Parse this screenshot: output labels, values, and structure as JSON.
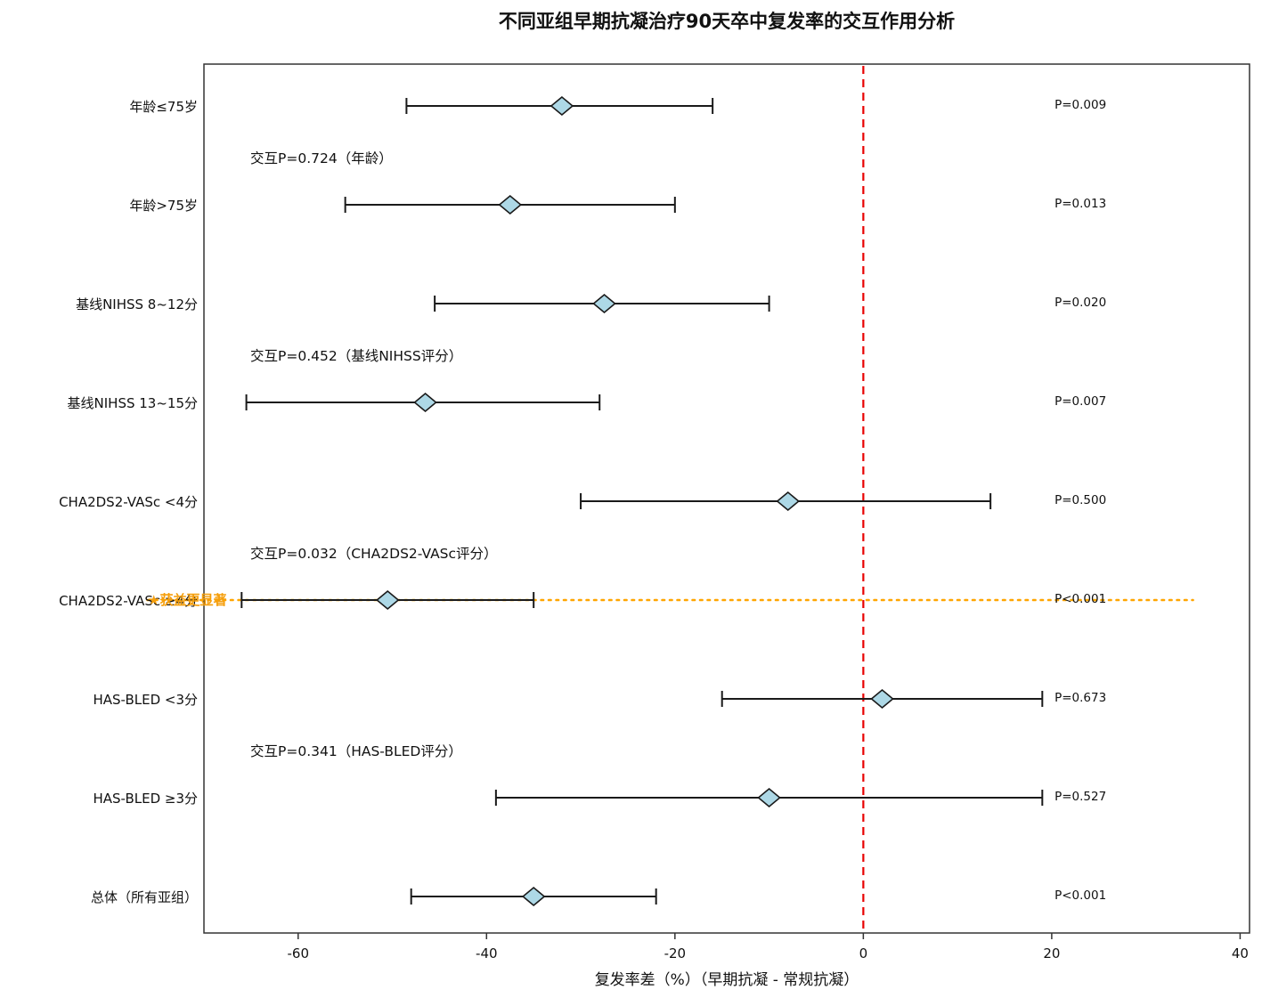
{
  "title": "不同亚组早期抗凝治疗90天卒中复发率的交互作用分析",
  "chart_data": {
    "type": "forest",
    "title": "不同亚组早期抗凝治疗90天卒中复发率的交互作用分析",
    "xlabel": "复发率差（%）（早期抗凝 - 常规抗凝）",
    "xlim": [
      -70,
      41
    ],
    "xticks": [
      "-60",
      "-40",
      "-20",
      "0",
      "20",
      "40"
    ],
    "xtick_values": [
      -60,
      -40,
      -20,
      0,
      20,
      40
    ],
    "reference_line": {
      "x": 0,
      "color": "#e80000",
      "style": "dashed"
    },
    "marker": {
      "shape": "diamond",
      "fill": "#add8e6",
      "edge": "#1a1a1a"
    },
    "rows": [
      {
        "label": "年龄≤75岁",
        "estimate": -32,
        "ci_low": -48.5,
        "ci_high": -16,
        "p_label": "P=0.009",
        "highlight": false
      },
      {
        "label": "年龄>75岁",
        "estimate": -37.5,
        "ci_low": -55,
        "ci_high": -20,
        "p_label": "P=0.013",
        "highlight": false
      },
      {
        "label": "基线NIHSS 8~12分",
        "estimate": -27.5,
        "ci_low": -45.5,
        "ci_high": -10,
        "p_label": "P=0.020",
        "highlight": false
      },
      {
        "label": "基线NIHSS 13~15分",
        "estimate": -46.5,
        "ci_low": -65.5,
        "ci_high": -28,
        "p_label": "P=0.007",
        "highlight": false
      },
      {
        "label": "CHA2DS2-VASc <4分",
        "estimate": -8,
        "ci_low": -30,
        "ci_high": 13.5,
        "p_label": "P=0.500",
        "highlight": false
      },
      {
        "label": "CHA2DS2-VASc ≥4分",
        "estimate": -50.5,
        "ci_low": -66,
        "ci_high": -35,
        "p_label": "P<0.001",
        "highlight": true
      },
      {
        "label": "HAS-BLED <3分",
        "estimate": 2,
        "ci_low": -15,
        "ci_high": 19,
        "p_label": "P=0.673",
        "highlight": false
      },
      {
        "label": "HAS-BLED ≥3分",
        "estimate": -10,
        "ci_low": -39,
        "ci_high": 19,
        "p_label": "P=0.527",
        "highlight": false
      },
      {
        "label": "总体（所有亚组）",
        "estimate": -35,
        "ci_low": -48,
        "ci_high": -22,
        "p_label": "P<0.001",
        "highlight": false
      }
    ],
    "interaction_annotations": [
      {
        "after_row": 0,
        "text": "交互P=0.724（年龄）"
      },
      {
        "after_row": 2,
        "text": "交互P=0.452（基线NIHSS评分）"
      },
      {
        "after_row": 4,
        "text": "交互P=0.032（CHA2DS2-VASc评分）"
      },
      {
        "after_row": 6,
        "text": "交互P=0.341（HAS-BLED评分）"
      }
    ],
    "highlight_annotation": {
      "row": 5,
      "text": "★获益更显著",
      "color": "#f59e0b",
      "line_color": "#ffa500",
      "line_x_start": -76,
      "line_x_end": 35
    },
    "legend_position": "none",
    "grid": false
  }
}
